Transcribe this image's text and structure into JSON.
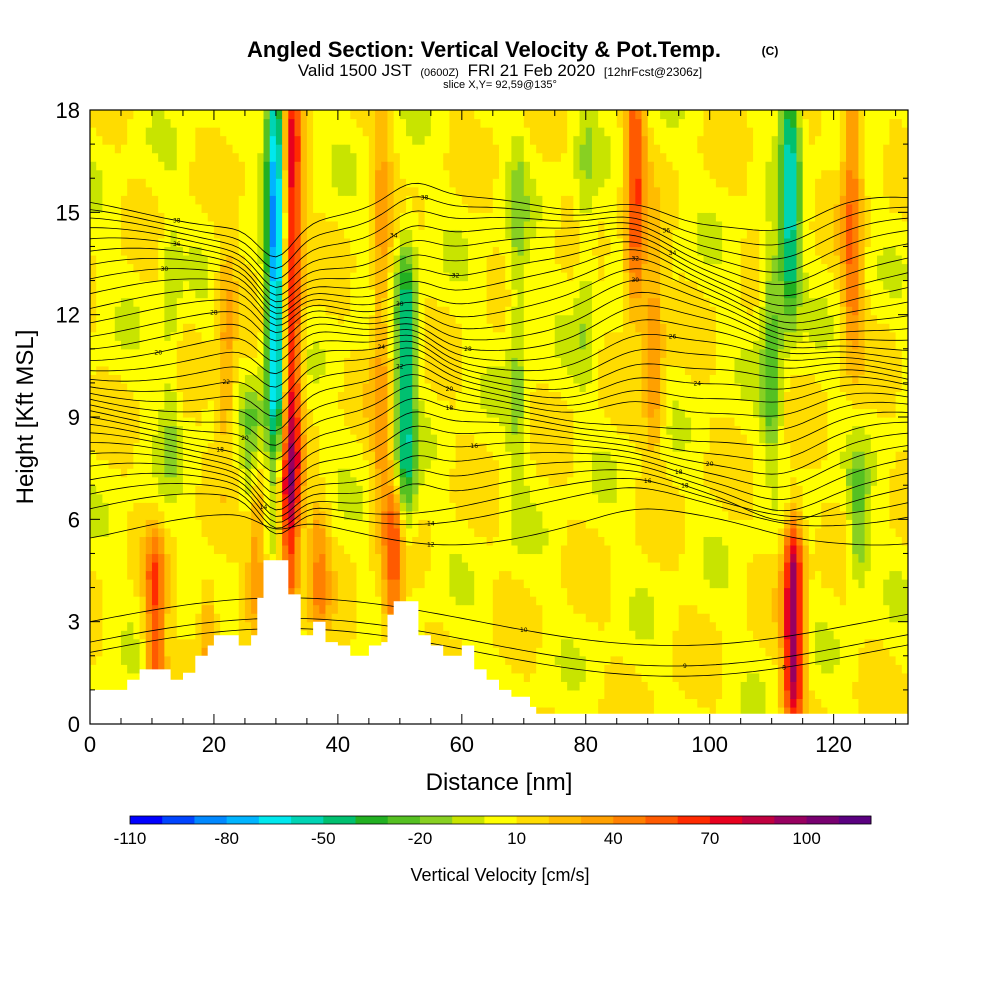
{
  "title": {
    "main": "Angled Section: Vertical Velocity & Pot.Temp.",
    "corner": "(C)",
    "valid_prefix": "Valid 1500 JST",
    "valid_zulu": "(0600Z)",
    "valid_date": "FRI 21 Feb 2020",
    "valid_fcst": "[12hrFcst@2306z]",
    "slice": "slice X,Y= 92,59@135°"
  },
  "chart_data": {
    "type": "heatmap",
    "xlabel": "Distance [nm]",
    "ylabel": "Height [Kft MSL]",
    "xlim": [
      0,
      132
    ],
    "ylim": [
      0,
      18
    ],
    "x_ticks": [
      "0",
      "20",
      "40",
      "60",
      "80",
      "100",
      "120"
    ],
    "y_ticks": [
      "0",
      "3",
      "6",
      "9",
      "12",
      "15",
      "18"
    ],
    "colorbar": {
      "label": "Vertical Velocity [cm/s]",
      "tick_labels": [
        "-110",
        "-80",
        "-50",
        "-20",
        "10",
        "40",
        "70",
        "100"
      ],
      "tick_values": [
        -110,
        -80,
        -50,
        -20,
        10,
        40,
        70,
        100
      ],
      "min": -110,
      "max": 120,
      "step": 10,
      "colors": [
        "#0000ff",
        "#0044ff",
        "#0088ff",
        "#00b4ff",
        "#00e8ee",
        "#00d4b4",
        "#00c070",
        "#22b022",
        "#55c022",
        "#88d022",
        "#c8e400",
        "#ffff00",
        "#ffdc00",
        "#ffbc00",
        "#ffa000",
        "#ff8000",
        "#ff5a00",
        "#ff2a00",
        "#e8001e",
        "#c00040",
        "#980060",
        "#780070",
        "#5a0080"
      ]
    },
    "updrafts": [
      {
        "x": 10.5,
        "y0": 1.5,
        "y1": 4.5,
        "w": 50
      },
      {
        "x": 19,
        "y0": 2,
        "y1": 3.5,
        "w": 25
      },
      {
        "x": 27,
        "y0": 4,
        "y1": 6.8,
        "w": 30
      },
      {
        "x": 32.5,
        "y0": 7,
        "y1": 18,
        "w": 70
      },
      {
        "x": 32,
        "y0": 4,
        "y1": 7,
        "w": 40
      },
      {
        "x": 37,
        "y0": 3,
        "y1": 5.5,
        "w": 30
      },
      {
        "x": 49,
        "y0": 2.5,
        "y1": 6,
        "w": 45
      },
      {
        "x": 47,
        "y0": 7,
        "y1": 17,
        "w": 25
      },
      {
        "x": 88,
        "y0": 13,
        "y1": 18,
        "w": 50
      },
      {
        "x": 91,
        "y0": 9,
        "y1": 13,
        "w": 30
      },
      {
        "x": 113.5,
        "y0": 1,
        "y1": 5,
        "w": 85
      },
      {
        "x": 123,
        "y0": 12,
        "y1": 18,
        "w": 40
      },
      {
        "x": 22,
        "y0": 9,
        "y1": 13,
        "w": 25
      }
    ],
    "downdrafts": [
      {
        "x": 30,
        "y0": 9,
        "y1": 18,
        "w": -90
      },
      {
        "x": 51,
        "y0": 7,
        "y1": 13,
        "w": -55
      },
      {
        "x": 113,
        "y0": 13,
        "y1": 18,
        "w": -60
      },
      {
        "x": 110,
        "y0": 9,
        "y1": 13,
        "w": -35
      },
      {
        "x": 69,
        "y0": 8,
        "y1": 16,
        "w": -20
      },
      {
        "x": 80,
        "y0": 11,
        "y1": 17,
        "w": -15
      },
      {
        "x": 13,
        "y0": 8,
        "y1": 14,
        "w": -15
      },
      {
        "x": 124,
        "y0": 5,
        "y1": 7,
        "w": -30
      },
      {
        "x": 26,
        "y0": 7,
        "y1": 9,
        "w": -25
      }
    ],
    "terrain": [
      [
        0,
        1.0
      ],
      [
        5,
        1.0
      ],
      [
        6,
        1.3
      ],
      [
        8,
        1.6
      ],
      [
        12,
        1.6
      ],
      [
        13,
        1.3
      ],
      [
        15,
        1.5
      ],
      [
        17,
        2.0
      ],
      [
        19,
        2.3
      ],
      [
        20,
        2.6
      ],
      [
        22,
        2.6
      ],
      [
        24,
        2.3
      ],
      [
        26,
        2.6
      ],
      [
        27,
        3.7
      ],
      [
        28,
        4.8
      ],
      [
        31,
        4.8
      ],
      [
        32,
        3.8
      ],
      [
        34,
        2.6
      ],
      [
        36,
        3.0
      ],
      [
        38,
        2.4
      ],
      [
        40,
        2.3
      ],
      [
        42,
        2.0
      ],
      [
        44,
        2.0
      ],
      [
        45,
        2.3
      ],
      [
        47,
        2.4
      ],
      [
        48,
        3.2
      ],
      [
        49,
        3.6
      ],
      [
        51,
        3.6
      ],
      [
        53,
        2.6
      ],
      [
        55,
        2.3
      ],
      [
        57,
        2.0
      ],
      [
        60,
        2.3
      ],
      [
        62,
        1.6
      ],
      [
        64,
        1.3
      ],
      [
        66,
        1.0
      ],
      [
        68,
        0.8
      ],
      [
        71,
        0.5
      ],
      [
        72,
        0.3
      ],
      [
        132,
        0.3
      ]
    ],
    "isentropes": [
      {
        "base": 7,
        "label": "8",
        "label_x": 112
      },
      {
        "base": 8,
        "label": "9",
        "label_x": 96
      },
      {
        "base": 10,
        "label": "10",
        "label_x": 70
      },
      {
        "base": 19,
        "label": "12",
        "label_x": 55
      },
      {
        "base": 21,
        "label": "14",
        "label_x": 55
      },
      {
        "base": 22,
        "label": "16",
        "label_x": 90
      },
      {
        "base": 23,
        "label": "18",
        "label_x": 96
      },
      {
        "base": 24,
        "label": "14",
        "label_x": 28
      },
      {
        "base": 25,
        "label": "18",
        "label_x": 95
      },
      {
        "base": 26,
        "label": "16",
        "label_x": 62
      },
      {
        "base": 27,
        "label": "20",
        "label_x": 100
      },
      {
        "base": 28,
        "label": "18",
        "label_x": 21
      },
      {
        "base": 29,
        "label": "18",
        "label_x": 58
      },
      {
        "base": 30,
        "label": "20",
        "label_x": 25
      },
      {
        "base": 31,
        "label": "20",
        "label_x": 58
      },
      {
        "base": 32,
        "label": "22",
        "label_x": 50
      },
      {
        "base": 33,
        "label": "24",
        "label_x": 98
      },
      {
        "base": 34,
        "label": "22",
        "label_x": 22
      },
      {
        "base": 35,
        "label": "24",
        "label_x": 47
      },
      {
        "base": 36,
        "label": "26",
        "label_x": 94
      },
      {
        "base": 37,
        "label": "26",
        "label_x": 11
      },
      {
        "base": 38,
        "label": "28",
        "label_x": 61
      },
      {
        "base": 39,
        "label": "28",
        "label_x": 20
      },
      {
        "base": 40,
        "label": "30",
        "label_x": 88
      },
      {
        "base": 41,
        "label": "30",
        "label_x": 50
      },
      {
        "base": 42,
        "label": "32",
        "label_x": 88
      },
      {
        "base": 43,
        "label": "30",
        "label_x": 12
      },
      {
        "base": 44,
        "label": "32",
        "label_x": 59
      },
      {
        "base": 45,
        "label": "34",
        "label_x": 94
      },
      {
        "base": 46,
        "label": "36",
        "label_x": 14
      },
      {
        "base": 47,
        "label": "34",
        "label_x": 49
      },
      {
        "base": 48,
        "label": "36",
        "label_x": 93
      },
      {
        "base": 49,
        "label": "38",
        "label_x": 54
      },
      {
        "base": 50,
        "label": "38",
        "label_x": 14
      }
    ]
  }
}
